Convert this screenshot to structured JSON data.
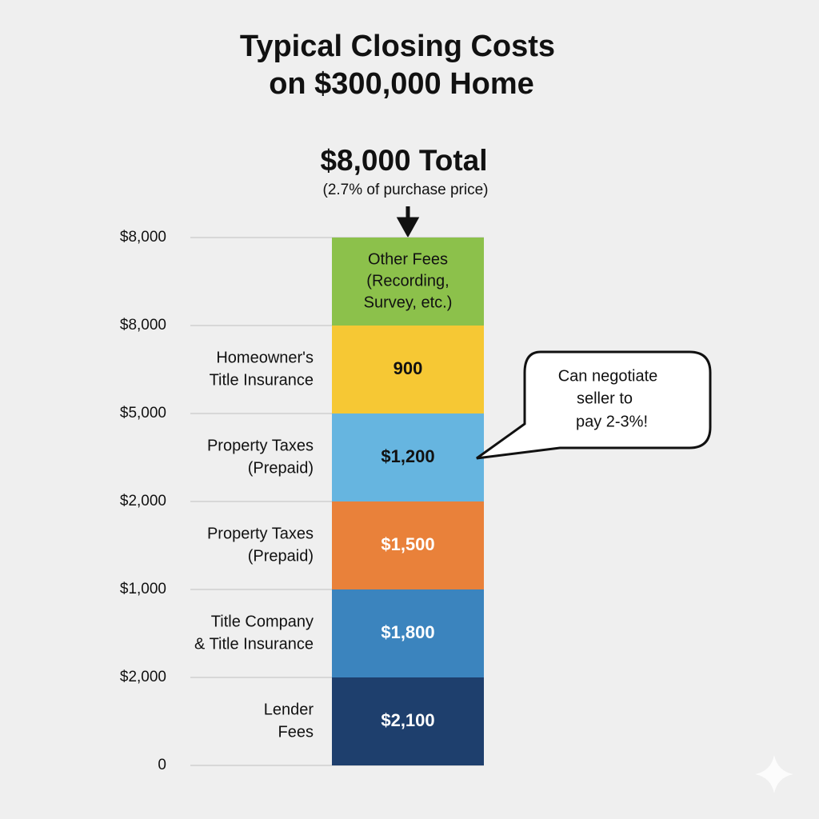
{
  "title": [
    "Typical Closing Costs",
    "on $300,000 Home"
  ],
  "total": "$8,000 Total",
  "total_note": "(2.7% of purchase price)",
  "axis_labels": [
    "$8,000",
    "$8,000",
    "$5,000",
    "$2,000",
    "$1,000",
    "$2,000",
    "0"
  ],
  "segments": [
    {
      "label": [
        "Lender",
        "Fees"
      ],
      "value_label": "$2,100",
      "color": "#1e3f6d",
      "text_color": "#ffffff"
    },
    {
      "label": [
        "Title Company",
        "& Title Insurance"
      ],
      "value_label": "$1,800",
      "color": "#3b84be",
      "text_color": "#ffffff"
    },
    {
      "label": [
        "Property Taxes",
        "(Prepaid)"
      ],
      "value_label": "$1,500",
      "color": "#e9813a",
      "text_color": "#ffffff"
    },
    {
      "label": [
        "Property Taxes",
        "(Prepaid)"
      ],
      "value_label": "$1,200",
      "color": "#66b5e0",
      "text_color": "#111111"
    },
    {
      "label": [
        "Homeowner's",
        "Title Insurance"
      ],
      "value_label": "900",
      "color": "#f6c834",
      "text_color": "#111111"
    },
    {
      "inner_label": [
        "Other Fees",
        "(Recording,",
        "Survey, etc.)"
      ],
      "color": "#8cc14b",
      "text_color": "#111111"
    }
  ],
  "callout": [
    "Can negotiate",
    "seller to",
    "pay 2-3%!"
  ]
}
